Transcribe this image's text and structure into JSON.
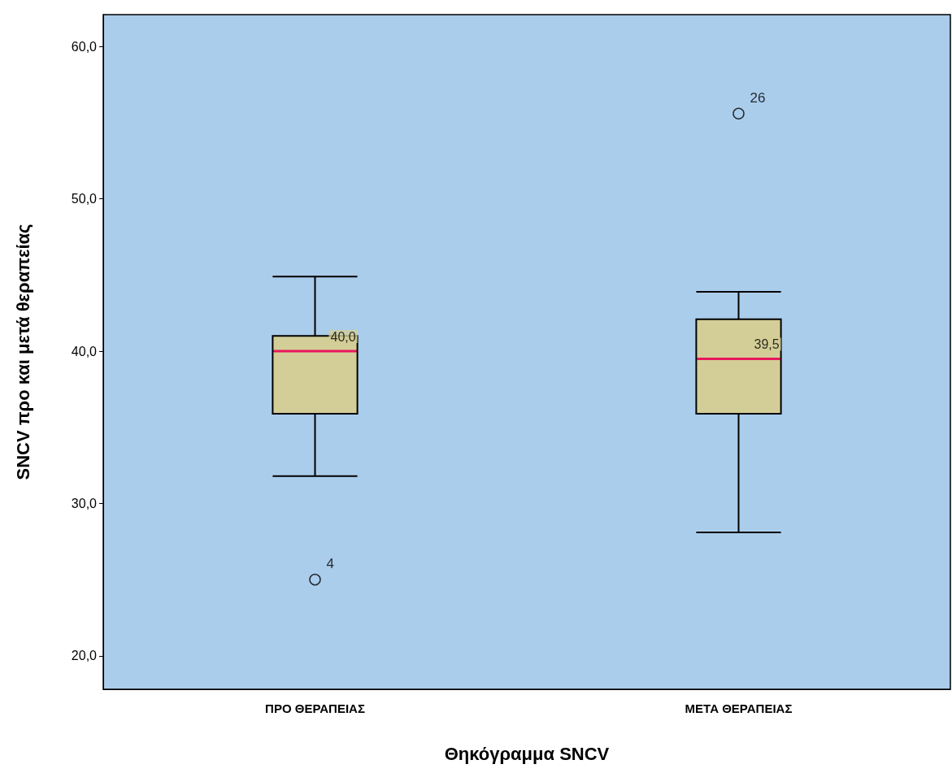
{
  "chart_data": {
    "type": "box",
    "xlabel": "Θηκόγραμμα SNCV",
    "ylabel": "SNCV προ και μετά θεραπείας",
    "categories": [
      "ΠΡΟ ΘΕΡΑΠΕΙΑΣ",
      "ΜΕΤΑ ΘΕΡΑΠΕΙΑΣ"
    ],
    "color": "#d3ce97",
    "boxes": [
      {
        "low": 31.8,
        "q1": 35.9,
        "median": 40.0,
        "q3": 41.0,
        "high": 44.9,
        "outliers": [
          25.0
        ]
      },
      {
        "low": 28.1,
        "q1": 35.9,
        "median": 39.5,
        "q3": 42.1,
        "high": 43.9,
        "outliers": [
          55.6
        ]
      }
    ],
    "ylim": [
      17.8,
      62.1
    ],
    "yticks": [
      {
        "value": 20,
        "label": "20,0"
      },
      {
        "value": 30,
        "label": "30,0"
      },
      {
        "value": 40,
        "label": "40,0"
      },
      {
        "value": 50,
        "label": "50,0"
      },
      {
        "value": 60,
        "label": "60,0"
      }
    ],
    "annotations": [
      {
        "text": "40,0",
        "x": "ΠΡΟ ΘΕΡΑΠΕΙΑΣ",
        "y": 40.0
      },
      {
        "text": "39,5",
        "x": "ΜΕΤΑ ΘΕΡΑΠΕΙΑΣ",
        "y": 39.5
      },
      "4",
      "26"
    ],
    "grid": false
  }
}
